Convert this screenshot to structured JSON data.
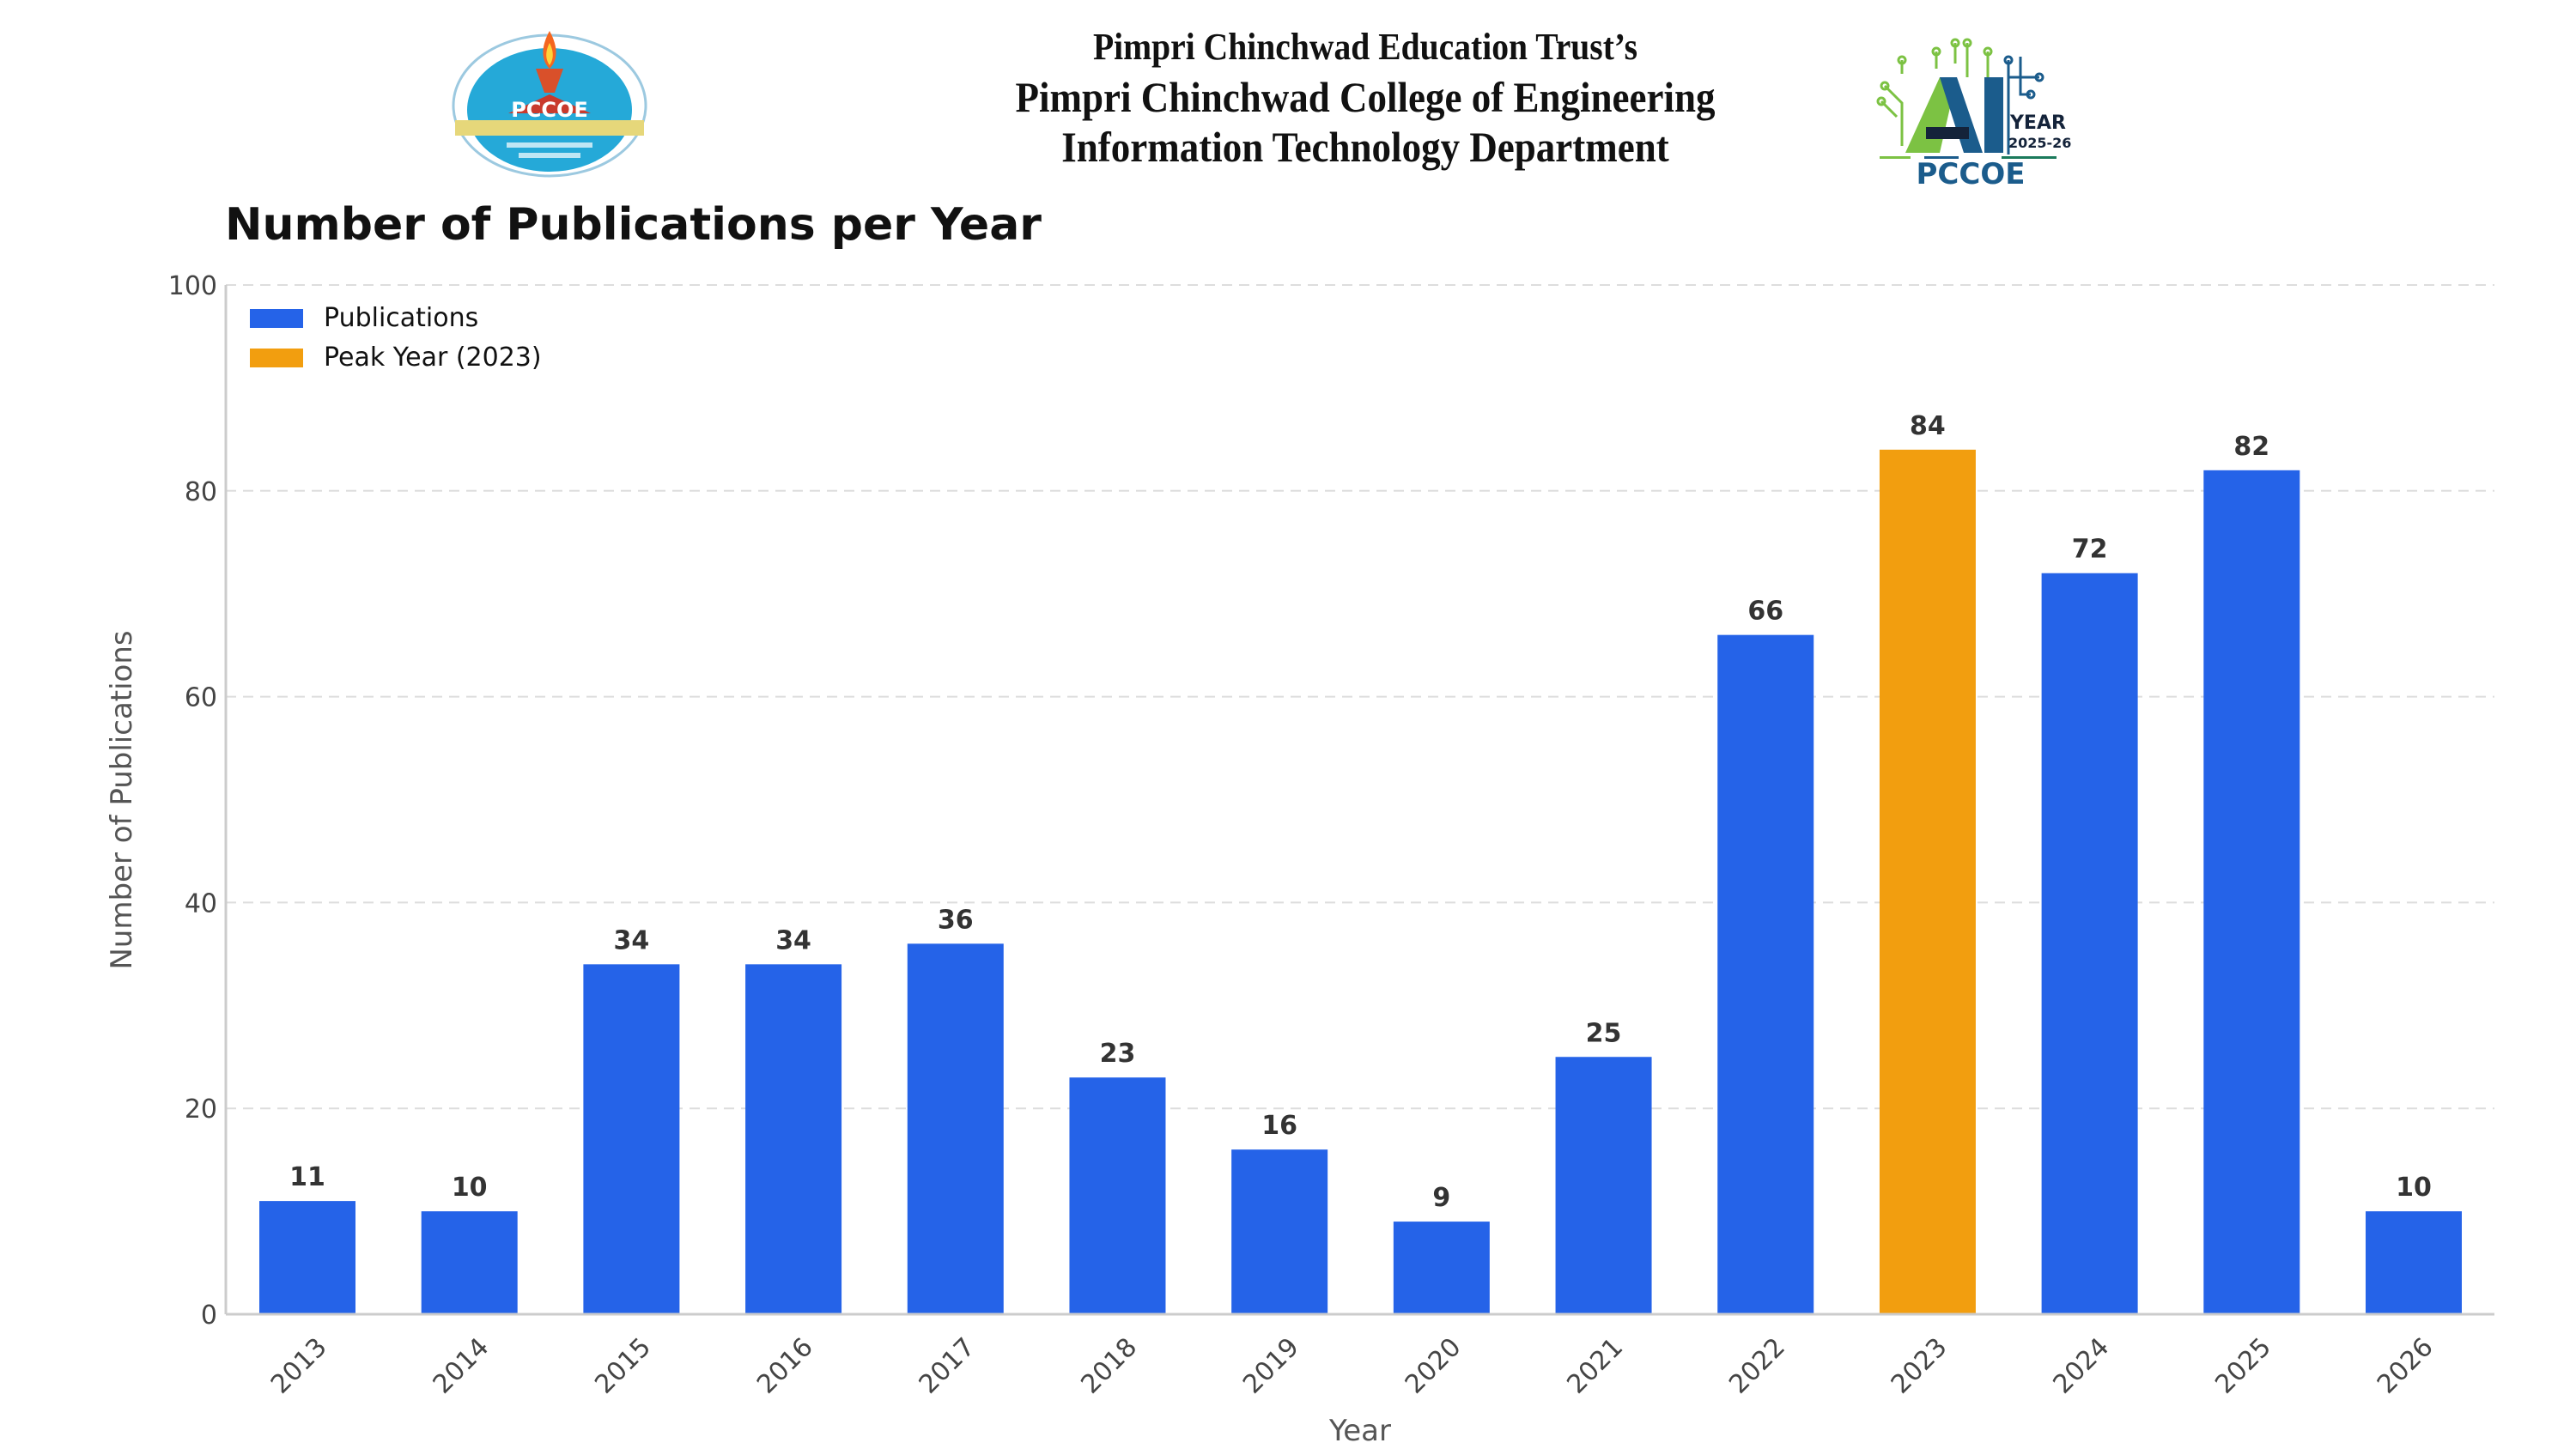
{
  "header": {
    "trust_line": "Pimpri Chinchwad Education Trust’s",
    "college_line": "Pimpri Chinchwad College of Engineering",
    "department_line": "Information Technology Department",
    "left_logo": {
      "icon": "pccoe-emblem-icon",
      "text": "PCCOE"
    },
    "right_logo": {
      "icon": "ai-year-logo-icon",
      "ai_text": "AI",
      "year_word": "YEAR",
      "year_range": "2025-26",
      "brand": "PCCOE"
    }
  },
  "colors": {
    "bar": "#2563e8",
    "peak": "#f29e0f",
    "grid": "#dddddd",
    "axis": "#cccccc",
    "text": "#333333"
  },
  "chart_data": {
    "type": "bar",
    "title": "Number of Publications per Year",
    "xlabel": "Year",
    "ylabel": "Number of Publications",
    "categories": [
      "2013",
      "2014",
      "2015",
      "2016",
      "2017",
      "2018",
      "2019",
      "2020",
      "2021",
      "2022",
      "2023",
      "2024",
      "2025",
      "2026"
    ],
    "values": [
      11,
      10,
      34,
      34,
      36,
      23,
      16,
      9,
      25,
      66,
      84,
      72,
      82,
      10
    ],
    "highlight": {
      "category": "2023",
      "value": 84
    },
    "ylim": [
      0,
      100
    ],
    "yticks": [
      0,
      20,
      40,
      60,
      80,
      100
    ],
    "grid": true,
    "grid_style": "dashed horizontal",
    "xtick_rotation_deg": 45,
    "legend": {
      "placement": "top-left",
      "entries": [
        {
          "label": "Publications",
          "color": "#2563e8"
        },
        {
          "label": "Peak Year (2023)",
          "color": "#f29e0f"
        }
      ]
    }
  }
}
